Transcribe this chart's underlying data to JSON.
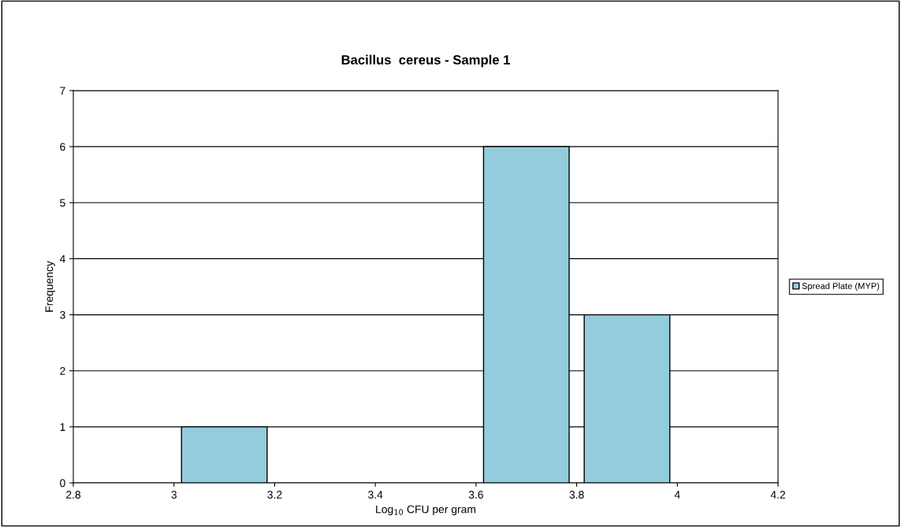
{
  "chart_data": {
    "type": "bar",
    "title": "Bacillus  cereus - Sample 1",
    "xlabel": "Log$_{10}$ CFU per gram",
    "ylabel": "Frequency",
    "x": [
      3.1,
      3.7,
      3.9
    ],
    "series": [
      {
        "name": "Spread Plate (MYP)",
        "color": "#93cddd",
        "values": [
          1,
          6,
          3
        ]
      }
    ],
    "xlim": [
      2.8,
      4.2
    ],
    "xticks": [
      2.8,
      3,
      3.2,
      3.4,
      3.6,
      3.8,
      4,
      4.2
    ],
    "ylim": [
      0,
      7
    ],
    "yticks": [
      0,
      1,
      2,
      3,
      4,
      5,
      6,
      7
    ],
    "grid": "y",
    "legend": "right"
  }
}
